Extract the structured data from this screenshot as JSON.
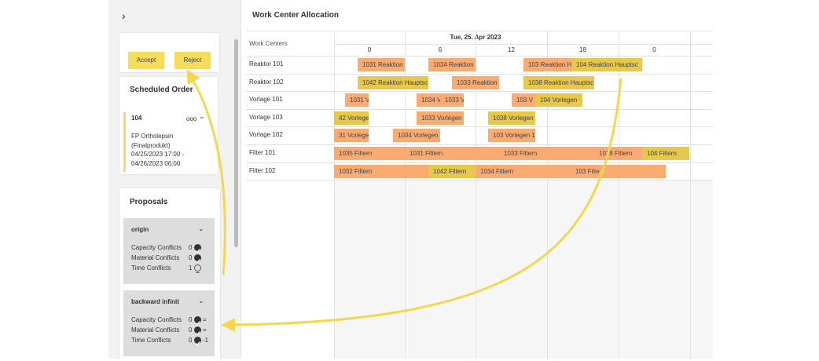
{
  "sidebar": {
    "toggle": "›",
    "actions": [
      "Accept",
      "Reject"
    ],
    "scheduled_order": {
      "title": "Scheduled Order",
      "id": "104",
      "menu": "ooo",
      "lines": [
        "FP Ortholepsin",
        "(Finalprodukt)",
        "04/25/2023 17:00 -",
        "04/26/2023 06:00"
      ]
    },
    "proposals": {
      "title": "Proposals",
      "groups": [
        {
          "name": "origin",
          "conflicts": [
            {
              "label": "Capacity Conflicts",
              "value": "0",
              "status": "ok"
            },
            {
              "label": "Material Conflicts",
              "value": "0",
              "status": "ok"
            },
            {
              "label": "Time Conflicts",
              "value": "1",
              "status": "warn"
            }
          ]
        },
        {
          "name": "backward infinit",
          "conflicts": [
            {
              "label": "Capacity Conflicts",
              "value": "0",
              "status": "ok",
              "delta": "="
            },
            {
              "label": "Material Conflicts",
              "value": "0",
              "status": "ok",
              "delta": "="
            },
            {
              "label": "Time Conflicts",
              "value": "0",
              "status": "ok",
              "delta": "-1"
            }
          ]
        }
      ]
    }
  },
  "allocation": {
    "title": "Work Center Allocation",
    "header": "Work Centers",
    "date": "Tue, 25. Apr 2023",
    "hours": [
      "0",
      "6",
      "12",
      "18",
      "0"
    ],
    "rows": [
      {
        "name": "Reaktor 101",
        "tasks": [
          {
            "label": "1031 Reaktion",
            "color": "#f9ab72"
          },
          {
            "label": "1034 Reaktion",
            "color": "#f9ab72"
          },
          {
            "label": "103 Reaktion H",
            "color": "#f9ab72"
          },
          {
            "label": "104 Reaktion Hauptsc",
            "color": "#e6c84d"
          }
        ]
      },
      {
        "name": "Reaktor 102",
        "tasks": [
          {
            "label": "1042 Reaktion Hauptsc",
            "color": "#e6c84d"
          },
          {
            "label": "1033 Reaktion",
            "color": "#f9ab72"
          },
          {
            "label": "1038 Reaktion Hauptsc",
            "color": "#e6c84d"
          }
        ]
      },
      {
        "name": "Vorlage 101",
        "tasks": [
          {
            "label": "1031 V",
            "color": "#f9ab72"
          },
          {
            "label": "1034 V",
            "color": "#f9ab72"
          },
          {
            "label": "1033 V",
            "color": "#f9ab72"
          },
          {
            "label": "103 V",
            "color": "#f9ab72"
          },
          {
            "label": "104 Vorlegen",
            "color": "#e6c84d"
          }
        ]
      },
      {
        "name": "Vorlage 103",
        "tasks": [
          {
            "label": "42 Vorlegen",
            "color": "#e6c84d"
          },
          {
            "label": "1033 Vorlegen",
            "color": "#f9ab72"
          },
          {
            "label": "1038 Vorlegen",
            "color": "#e6c84d"
          }
        ]
      },
      {
        "name": "Vorlage 102",
        "tasks": [
          {
            "label": "31 Vorlegen",
            "color": "#f9ab72"
          },
          {
            "label": "1034 Vorlegen",
            "color": "#f9ab72"
          },
          {
            "label": "103 Vorlegen 1",
            "color": "#f9ab72"
          }
        ]
      },
      {
        "name": "Filter 101",
        "tasks": [
          {
            "label": "1035 Filtern",
            "color": "#f9ab72"
          },
          {
            "label": "1031 Filtern",
            "color": "#f9ab72"
          },
          {
            "label": "1033 Filtern",
            "color": "#f9ab72"
          },
          {
            "label": "1038 Filtern",
            "color": "#f9ab72"
          },
          {
            "label": "104 Filtern",
            "color": "#e6c84d"
          }
        ]
      },
      {
        "name": "Filter 102",
        "tasks": [
          {
            "label": "1032 Filtern",
            "color": "#f9ab72"
          },
          {
            "label": "1042 Filtern",
            "color": "#e6c84d"
          },
          {
            "label": "1034 Filtern",
            "color": "#f9ab72"
          },
          {
            "label": "103 Filte",
            "color": "#f9ab72"
          }
        ]
      }
    ]
  }
}
